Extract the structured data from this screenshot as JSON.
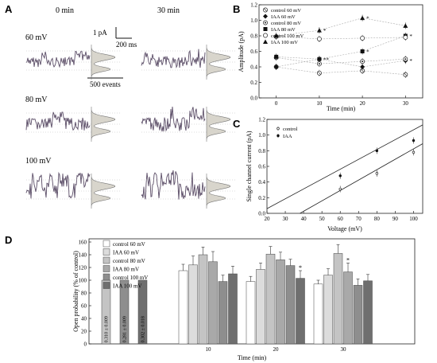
{
  "panel_A": {
    "letter": "A",
    "col_labels": [
      "0 min",
      "30 min"
    ],
    "row_labels": [
      "60 mV",
      "80 mV",
      "100 mV"
    ],
    "scale_current": "1 pA",
    "scale_time": "200 ms",
    "scale_events": "500 events"
  },
  "colors": {
    "trace": "#5a4c66",
    "histogram_fill": "#d8d5cc",
    "line": "#333333",
    "grid_dot": "#bbbbbb"
  },
  "chart_data": [
    {
      "panel": "B",
      "type": "scatter",
      "xlabel": "Time (min)",
      "ylabel": "Amplitude (pA)",
      "xlim": [
        -4,
        34
      ],
      "ylim": [
        0,
        1.2
      ],
      "xticks": [
        0,
        10,
        20,
        30
      ],
      "yticks": [
        "0.0",
        "0.2",
        "0.4",
        "0.6",
        "0.8",
        "1.0",
        "1.2"
      ],
      "x": [
        0,
        10,
        20,
        30
      ],
      "series": [
        {
          "name": "control 60 mV",
          "marker": "circle-x",
          "values": [
            0.4,
            0.32,
            0.35,
            0.3
          ]
        },
        {
          "name": "IAA 60 mV",
          "marker": "diamond",
          "values": [
            0.4,
            0.5,
            0.4,
            0.48
          ]
        },
        {
          "name": "control 80 mV",
          "marker": "circle-dot",
          "values": [
            0.52,
            0.44,
            0.47,
            0.5
          ]
        },
        {
          "name": "IAA 80 mV",
          "marker": "square",
          "values": [
            0.53,
            0.5,
            0.6,
            0.8
          ]
        },
        {
          "name": "control 100 mV",
          "marker": "circle-diamond",
          "values": [
            0.79,
            0.76,
            0.77,
            0.78
          ]
        },
        {
          "name": "IAA 100 mV",
          "marker": "triangle",
          "values": [
            0.8,
            0.87,
            1.03,
            0.93
          ]
        }
      ],
      "annotations": [
        {
          "x": 10,
          "y": 0.87,
          "text": "*"
        },
        {
          "x": 10,
          "y": 0.5,
          "text": "**"
        },
        {
          "x": 20,
          "y": 1.03,
          "text": "*"
        },
        {
          "x": 20,
          "y": 0.6,
          "text": "*"
        },
        {
          "x": 30,
          "y": 0.8,
          "text": "*"
        },
        {
          "x": 30,
          "y": 0.48,
          "text": "*"
        }
      ],
      "legend": "top-left"
    },
    {
      "panel": "C",
      "type": "scatter",
      "xlabel": "Voltage (mV)",
      "ylabel": "Single channel current (pA)",
      "xlim": [
        20,
        105
      ],
      "ylim": [
        0,
        1.2
      ],
      "xticks": [
        20,
        30,
        40,
        50,
        60,
        70,
        80,
        90,
        100
      ],
      "yticks": [
        "0.0",
        "0.2",
        "0.4",
        "0.6",
        "0.8",
        "1.0",
        "1.2"
      ],
      "series": [
        {
          "name": "control",
          "x": [
            60,
            80,
            100
          ],
          "values": [
            0.31,
            0.51,
            0.78
          ]
        },
        {
          "name": "IAA",
          "x": [
            60,
            80,
            100
          ],
          "values": [
            0.48,
            0.8,
            0.93
          ]
        }
      ],
      "fit_lines": [
        {
          "series": "control",
          "from": [
            38,
            0.0
          ],
          "to": [
            105,
            0.89
          ]
        },
        {
          "series": "IAA",
          "from": [
            20,
            0.06
          ],
          "to": [
            105,
            1.13
          ]
        }
      ],
      "legend": "top-left"
    },
    {
      "panel": "D",
      "type": "bar",
      "xlabel": "Time (min)",
      "ylabel": "Open probability (% of control)",
      "ylim": [
        0,
        165
      ],
      "yticks": [
        "0",
        "20",
        "40",
        "60",
        "80",
        "100",
        "120",
        "140",
        "160"
      ],
      "categories": [
        "0",
        "10",
        "20",
        "30"
      ],
      "category_labels": [
        "",
        "10",
        "20",
        "30"
      ],
      "series": [
        {
          "name": "control 60 mV",
          "color": "#ffffff",
          "values": [
            null,
            115,
            98,
            94
          ],
          "errors": [
            null,
            10,
            8,
            6
          ]
        },
        {
          "name": "IAA 60 mV",
          "color": "#dcdcdc",
          "values": [
            null,
            124,
            117,
            108
          ],
          "errors": [
            null,
            14,
            10,
            10
          ]
        },
        {
          "name": "control 80 mV",
          "color": "#c4c4c4",
          "values": [
            100,
            140,
            141,
            142
          ],
          "errors": [
            null,
            12,
            12,
            14
          ]
        },
        {
          "name": "IAA 80 mV",
          "color": "#a9a9a9",
          "values": [
            null,
            129,
            132,
            113
          ],
          "errors": [
            null,
            16,
            12,
            14
          ]
        },
        {
          "name": "control 100 mV",
          "color": "#8e8e8e",
          "values": [
            100,
            98,
            123,
            92
          ],
          "errors": [
            null,
            10,
            10,
            10
          ]
        },
        {
          "name": "IAA 100 mV",
          "color": "#6f6f6f",
          "values": [
            100,
            110,
            103,
            99
          ],
          "errors": [
            null,
            12,
            12,
            10
          ]
        }
      ],
      "baseline_labels": [
        "0.310 ± 0.009",
        "0.281 ± 0.009",
        "0.302 ± 0.018"
      ],
      "annotations": [
        {
          "category": "20",
          "series": "IAA 100 mV",
          "text": "*"
        },
        {
          "category": "30",
          "series": "IAA 80 mV",
          "text": "*"
        }
      ],
      "legend": "top-left"
    }
  ]
}
